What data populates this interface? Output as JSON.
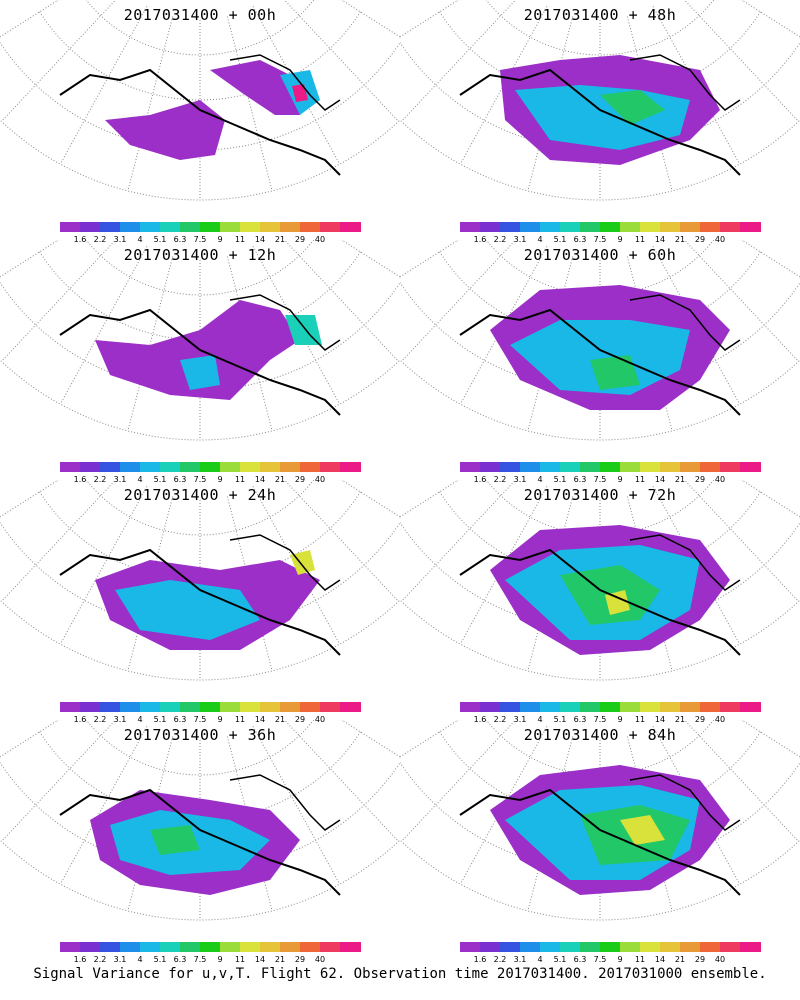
{
  "panels": [
    {
      "title": "2017031400 + 00h"
    },
    {
      "title": "2017031400 + 48h"
    },
    {
      "title": "2017031400 + 12h"
    },
    {
      "title": "2017031400 + 60h"
    },
    {
      "title": "2017031400 + 24h"
    },
    {
      "title": "2017031400 + 72h"
    },
    {
      "title": "2017031400 + 36h"
    },
    {
      "title": "2017031400 + 84h"
    }
  ],
  "colorbar": {
    "labels": [
      "1.6",
      "2.2",
      "3.1",
      "4",
      "5.1",
      "6.3",
      "7.5",
      "9",
      "11",
      "14",
      "21",
      "29",
      "40"
    ],
    "colors": [
      "#9b2fc7",
      "#7a2fd0",
      "#3552e0",
      "#1f8ee8",
      "#1ab8e6",
      "#1ad0b8",
      "#22c768",
      "#19cc19",
      "#9adc3a",
      "#d8e23a",
      "#e6c43a",
      "#e89a36",
      "#ef6638",
      "#ee3a5e",
      "#ec1a86"
    ]
  },
  "footer": "Signal Variance for u,v,T. Flight 62. Observation time 2017031400. 2017031000 ensemble."
}
